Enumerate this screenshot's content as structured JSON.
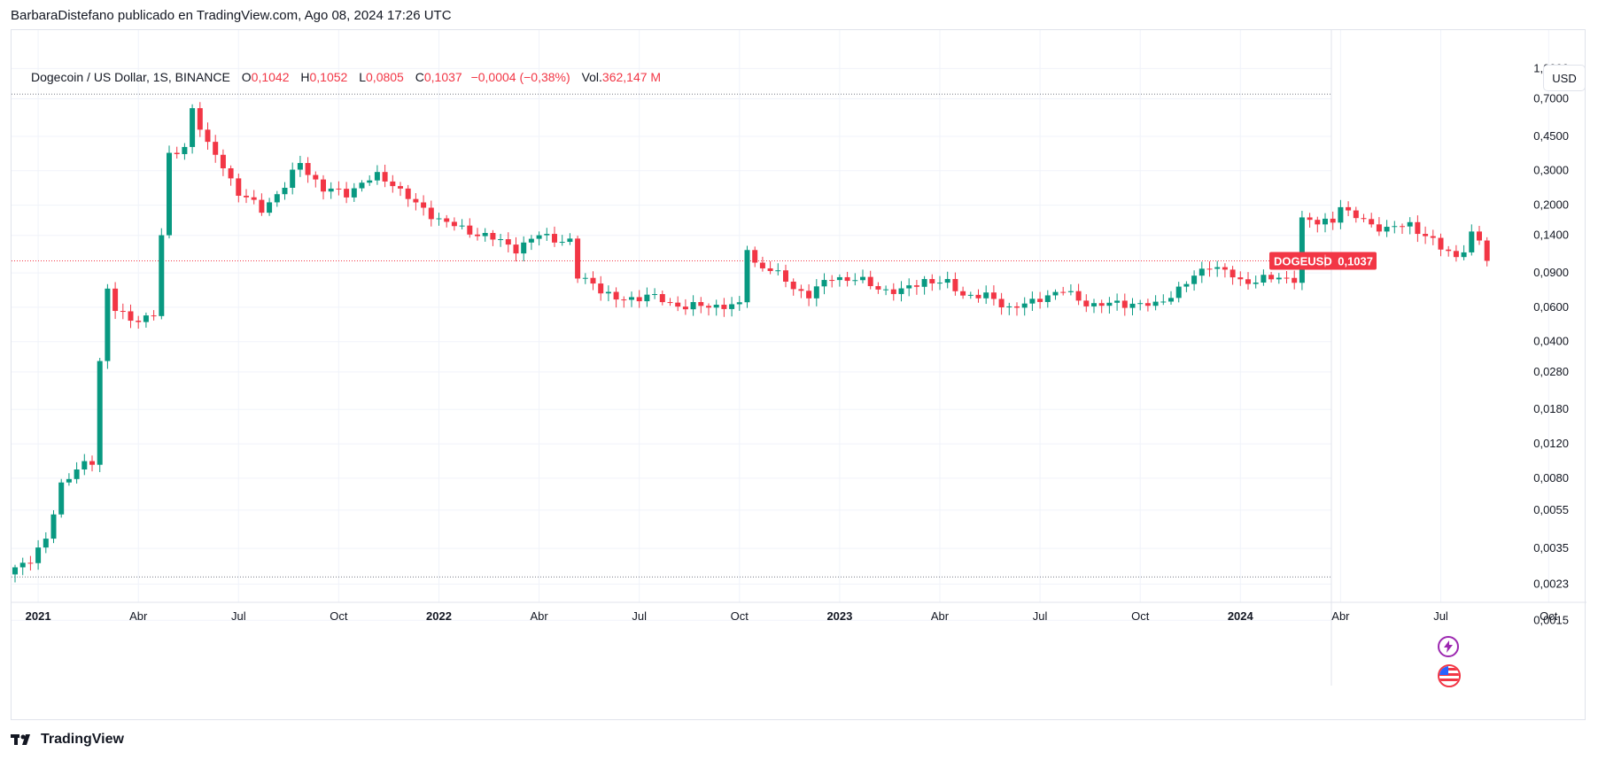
{
  "caption": "BarbaraDistefano publicado en TradingView.com, Ago 08, 2024 17:26 UTC",
  "legend": {
    "symbol": "Dogecoin / US Dollar, 1S, BINANCE",
    "open_label": "O",
    "open": "0,1042",
    "high_label": "H",
    "high": "0,1052",
    "low_label": "L",
    "low": "0,0805",
    "close_label": "C",
    "close": "0,1037",
    "change": "−0,0004 (−0,38%)",
    "vol_label": "Vol.",
    "vol": "362,147 M"
  },
  "currency_button": "USD",
  "price_tag": {
    "symbol": "DOGEUSD",
    "value": "0,1037"
  },
  "footer": {
    "brand": "TradingView"
  },
  "colors": {
    "up": "#089981",
    "down": "#f23645",
    "grid": "#f0f3fa",
    "axis_text": "#131722",
    "text": "#131722"
  },
  "icons": {
    "lightning": "lightning-icon",
    "flag": "us-flag-icon",
    "logo": "tradingview-logo-icon"
  },
  "chart_data": {
    "type": "candlestick",
    "scale": "log",
    "ylim": [
      0.0013,
      1.15
    ],
    "y_ticks": [
      {
        "v": 1.0,
        "label": "1,0000"
      },
      {
        "v": 0.7,
        "label": "0,7000"
      },
      {
        "v": 0.45,
        "label": "0,4500"
      },
      {
        "v": 0.3,
        "label": "0,3000"
      },
      {
        "v": 0.2,
        "label": "0,2000"
      },
      {
        "v": 0.14,
        "label": "0,1400"
      },
      {
        "v": 0.09,
        "label": "0,0900"
      },
      {
        "v": 0.06,
        "label": "0,0600"
      },
      {
        "v": 0.04,
        "label": "0,0400"
      },
      {
        "v": 0.028,
        "label": "0,0280"
      },
      {
        "v": 0.018,
        "label": "0,0180"
      },
      {
        "v": 0.012,
        "label": "0,0120"
      },
      {
        "v": 0.008,
        "label": "0,0080"
      },
      {
        "v": 0.0055,
        "label": "0,0055"
      },
      {
        "v": 0.0035,
        "label": "0,0035"
      },
      {
        "v": 0.0023,
        "label": "0,0023"
      },
      {
        "v": 0.0015,
        "label": "0,0015"
      }
    ],
    "x_ticks": [
      {
        "week": 3,
        "label": "2021",
        "bold": true
      },
      {
        "week": 16,
        "label": "Abr",
        "bold": false
      },
      {
        "week": 29,
        "label": "Jul",
        "bold": false
      },
      {
        "week": 42,
        "label": "Oct",
        "bold": false
      },
      {
        "week": 55,
        "label": "2022",
        "bold": true
      },
      {
        "week": 68,
        "label": "Abr",
        "bold": false
      },
      {
        "week": 81,
        "label": "Jul",
        "bold": false
      },
      {
        "week": 94,
        "label": "Oct",
        "bold": false
      },
      {
        "week": 107,
        "label": "2023",
        "bold": true
      },
      {
        "week": 120,
        "label": "Abr",
        "bold": false
      },
      {
        "week": 133,
        "label": "Jul",
        "bold": false
      },
      {
        "week": 146,
        "label": "Oct",
        "bold": false
      },
      {
        "week": 159,
        "label": "2024",
        "bold": true
      },
      {
        "week": 172,
        "label": "Abr",
        "bold": false
      },
      {
        "week": 185,
        "label": "Jul",
        "bold": false
      },
      {
        "week": 199,
        "label": "Oct",
        "bold": false
      }
    ],
    "ath_line": 0.74,
    "atl_line": 0.0025,
    "current_price": 0.1037,
    "waypoints": [
      [
        0,
        0.0028
      ],
      [
        2,
        0.0031
      ],
      [
        4,
        0.0038
      ],
      [
        6,
        0.0075
      ],
      [
        8,
        0.009
      ],
      [
        10,
        0.0095
      ],
      [
        11,
        0.032
      ],
      [
        12,
        0.075
      ],
      [
        13,
        0.06
      ],
      [
        15,
        0.05
      ],
      [
        18,
        0.056
      ],
      [
        20,
        0.35
      ],
      [
        22,
        0.4
      ],
      [
        23,
        0.63
      ],
      [
        25,
        0.4
      ],
      [
        27,
        0.32
      ],
      [
        29,
        0.23
      ],
      [
        32,
        0.19
      ],
      [
        35,
        0.25
      ],
      [
        37,
        0.33
      ],
      [
        40,
        0.24
      ],
      [
        43,
        0.23
      ],
      [
        45,
        0.26
      ],
      [
        47,
        0.28
      ],
      [
        49,
        0.26
      ],
      [
        52,
        0.2
      ],
      [
        55,
        0.17
      ],
      [
        58,
        0.15
      ],
      [
        61,
        0.14
      ],
      [
        65,
        0.12
      ],
      [
        68,
        0.14
      ],
      [
        72,
        0.13
      ],
      [
        73,
        0.085
      ],
      [
        75,
        0.08
      ],
      [
        78,
        0.065
      ],
      [
        80,
        0.066
      ],
      [
        82,
        0.07
      ],
      [
        85,
        0.062
      ],
      [
        88,
        0.061
      ],
      [
        90,
        0.06
      ],
      [
        92,
        0.062
      ],
      [
        94,
        0.061
      ],
      [
        95,
        0.12
      ],
      [
        96,
        0.1
      ],
      [
        98,
        0.095
      ],
      [
        101,
        0.075
      ],
      [
        103,
        0.07
      ],
      [
        106,
        0.085
      ],
      [
        109,
        0.084
      ],
      [
        112,
        0.075
      ],
      [
        115,
        0.072
      ],
      [
        118,
        0.083
      ],
      [
        121,
        0.079
      ],
      [
        123,
        0.07
      ],
      [
        126,
        0.068
      ],
      [
        129,
        0.06
      ],
      [
        132,
        0.063
      ],
      [
        134,
        0.07
      ],
      [
        136,
        0.073
      ],
      [
        138,
        0.065
      ],
      [
        140,
        0.062
      ],
      [
        142,
        0.062
      ],
      [
        145,
        0.063
      ],
      [
        148,
        0.061
      ],
      [
        150,
        0.07
      ],
      [
        153,
        0.085
      ],
      [
        155,
        0.1
      ],
      [
        157,
        0.092
      ],
      [
        159,
        0.08
      ],
      [
        162,
        0.085
      ],
      [
        164,
        0.083
      ],
      [
        166,
        0.085
      ],
      [
        167,
        0.17
      ],
      [
        169,
        0.16
      ],
      [
        171,
        0.17
      ],
      [
        172,
        0.2
      ],
      [
        173,
        0.18
      ],
      [
        176,
        0.16
      ],
      [
        178,
        0.15
      ],
      [
        181,
        0.16
      ],
      [
        183,
        0.14
      ],
      [
        185,
        0.12
      ],
      [
        187,
        0.11
      ],
      [
        188,
        0.12
      ],
      [
        189,
        0.14
      ],
      [
        190,
        0.13
      ],
      [
        191,
        0.1037
      ]
    ]
  }
}
